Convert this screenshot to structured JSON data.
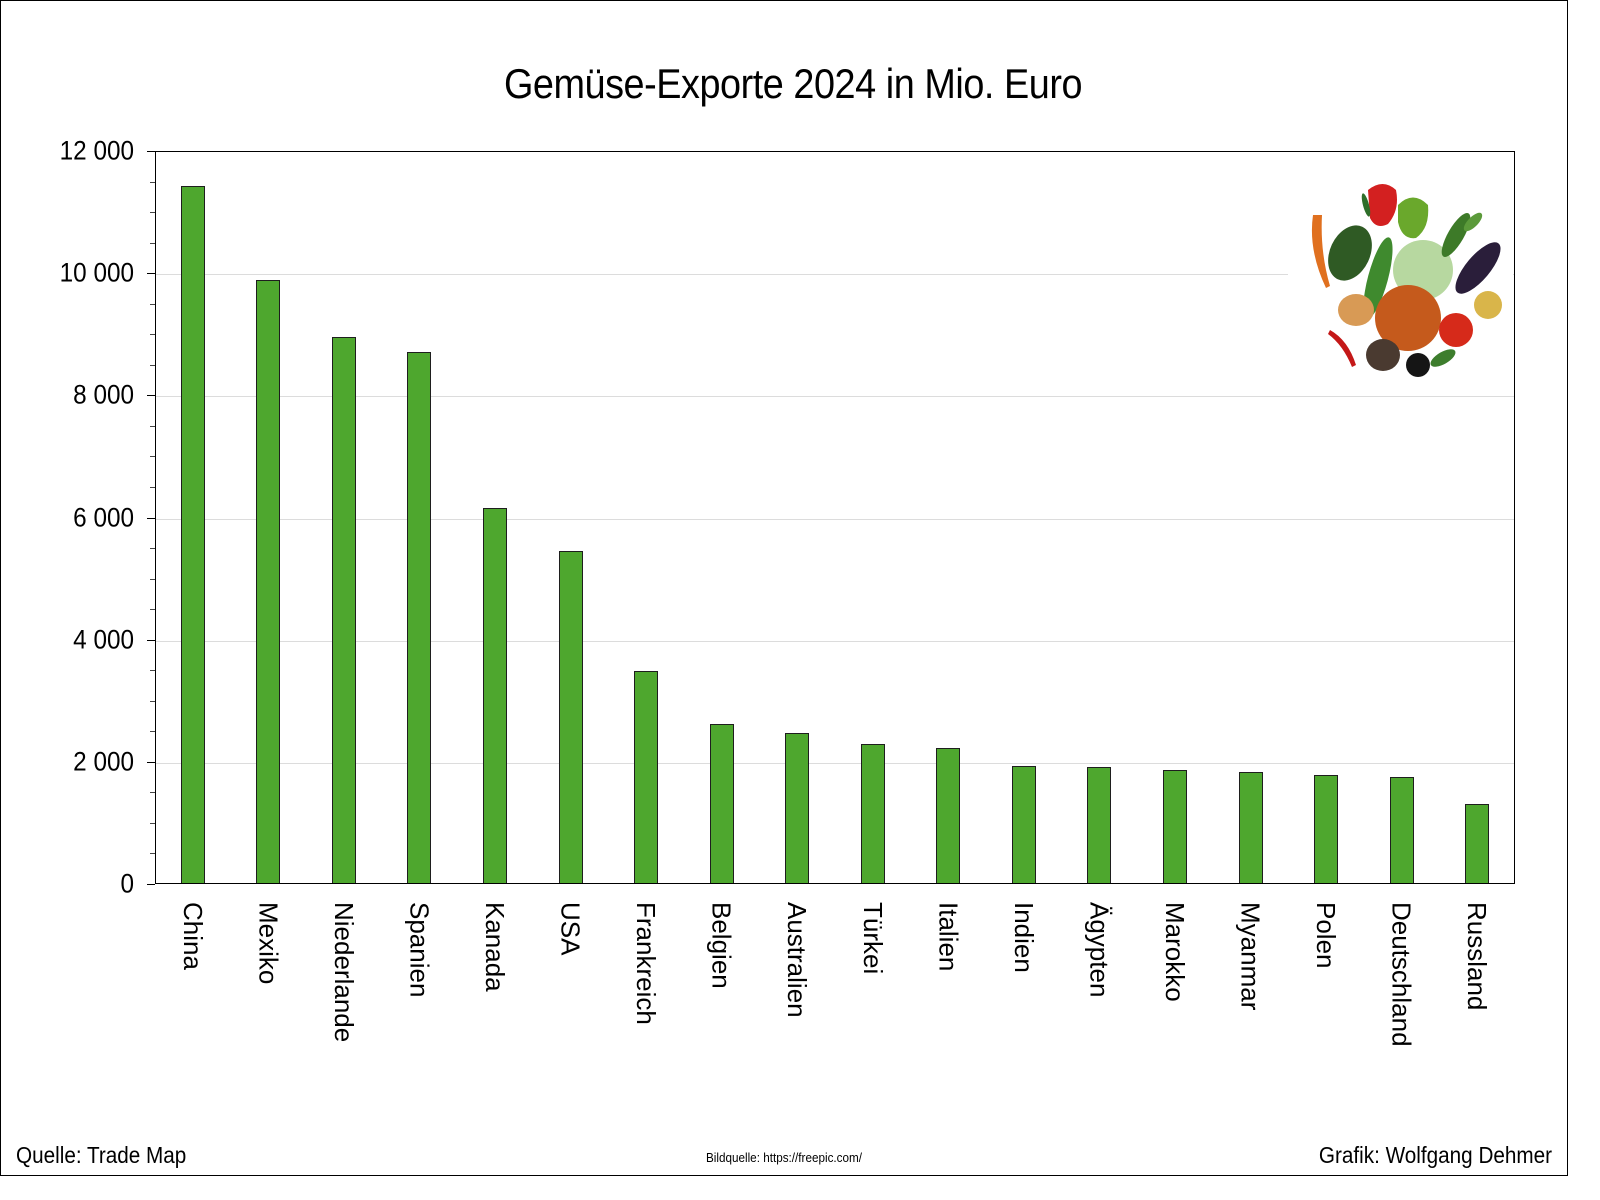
{
  "chart_data": {
    "type": "bar",
    "title": "Gemüse-Exporte 2024 in Mio. Euro",
    "xlabel": "",
    "ylabel": "",
    "ylim": [
      0,
      12000
    ],
    "yticks": [
      0,
      2000,
      4000,
      6000,
      8000,
      10000,
      12000
    ],
    "ytick_labels": [
      "0",
      "2 000",
      "4 000",
      "6 000",
      "8 000",
      "10 000",
      "12 000"
    ],
    "grid": true,
    "legend": null,
    "bar_color": "#4ea72e",
    "categories": [
      "China",
      "Mexiko",
      "Niederlande",
      "Spanien",
      "Kanada",
      "USA",
      "Frankreich",
      "Belgien",
      "Australien",
      "Türkei",
      "Italien",
      "Indien",
      "Ägypten",
      "Marokko",
      "Myanmar",
      "Polen",
      "Deutschland",
      "Russland"
    ],
    "values": [
      11410,
      9870,
      8940,
      8690,
      6140,
      5440,
      3470,
      2600,
      2460,
      2280,
      2210,
      1920,
      1900,
      1850,
      1820,
      1770,
      1740,
      1290
    ]
  },
  "footer": {
    "source": "Quelle: Trade Map",
    "image_credit": "Bildquelle: https://freepic.com/",
    "author": "Grafik: Wolfgang Dehmer"
  },
  "decoration": {
    "image": "vegetables-illustration"
  }
}
